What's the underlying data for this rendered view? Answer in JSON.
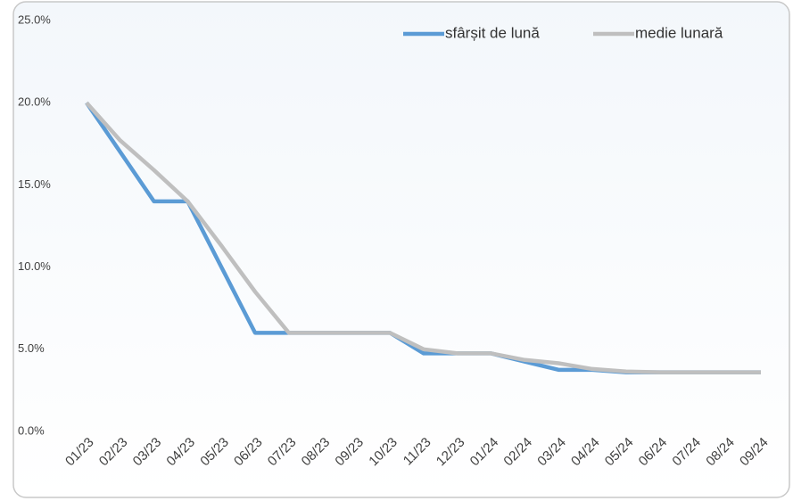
{
  "chart_data": {
    "type": "line",
    "categories": [
      "01/23",
      "02/23",
      "03/23",
      "04/23",
      "05/23",
      "06/23",
      "07/23",
      "08/23",
      "09/23",
      "10/23",
      "11/23",
      "12/23",
      "01/24",
      "02/24",
      "03/24",
      "04/24",
      "05/24",
      "06/24",
      "07/24",
      "08/24",
      "09/24"
    ],
    "series": [
      {
        "name": "sfârșit de lună",
        "color": "#5b9bd5",
        "values": [
          20,
          17,
          14,
          14,
          10,
          6,
          6,
          6,
          6,
          6,
          4.75,
          4.75,
          4.75,
          4.25,
          3.75,
          3.75,
          3.6,
          3.6,
          3.6,
          3.6,
          3.6
        ]
      },
      {
        "name": "medie lunară",
        "color": "#bfbfbf",
        "values": [
          20,
          17.7,
          15.9,
          14,
          11.3,
          8.5,
          6,
          6,
          6,
          6,
          5,
          4.75,
          4.75,
          4.35,
          4.15,
          3.8,
          3.65,
          3.6,
          3.6,
          3.6,
          3.6
        ]
      }
    ],
    "ylim": [
      0,
      25
    ],
    "yticks": [
      {
        "value": 0,
        "label": "0.0%"
      },
      {
        "value": 5,
        "label": "5.0%"
      },
      {
        "value": 10,
        "label": "10.0%"
      },
      {
        "value": 15,
        "label": "15.0%"
      },
      {
        "value": 20,
        "label": "20.0%"
      },
      {
        "value": 25,
        "label": "25.0%"
      }
    ],
    "legend": "top-right"
  }
}
